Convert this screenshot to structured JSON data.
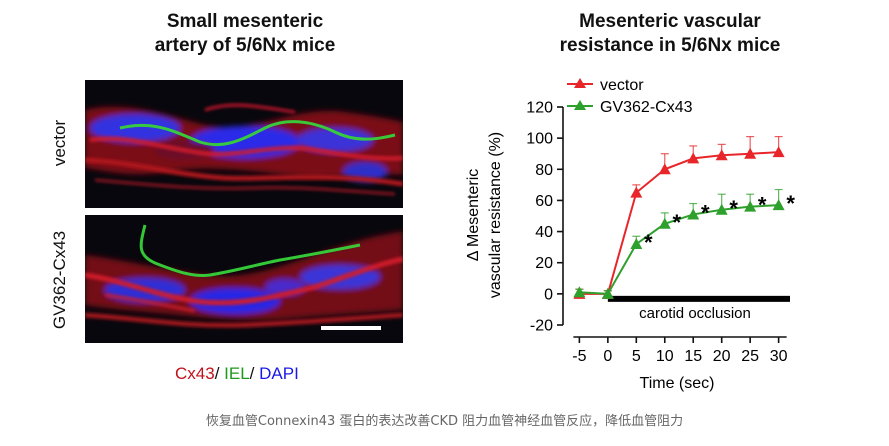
{
  "left_panel": {
    "title_line1": "Small mesenteric",
    "title_line2": "artery of 5/6Nx mice",
    "row_labels": [
      "vector",
      "GV362-Cx43"
    ],
    "stain_legend": {
      "cx43": "Cx43",
      "sep1": "/ ",
      "iel": "IEL",
      "sep2": "/ ",
      "dapi": "DAPI",
      "colors": {
        "cx43": "#c0121b",
        "iel": "#1c9a1c",
        "dapi": "#1a1ae6"
      }
    }
  },
  "right_panel": {
    "title_line1": "Mesenteric vascular",
    "title_line2": "resistance in 5/6Nx mice"
  },
  "chart_data": {
    "type": "line",
    "x": [
      -5,
      0,
      5,
      10,
      15,
      20,
      25,
      30
    ],
    "xlabel": "Time (sec)",
    "ylabel_line1": "Δ Mesenteric",
    "ylabel_line2": "vascular resistance (%)",
    "xlim": [
      -7,
      32
    ],
    "ylim": [
      -20,
      120
    ],
    "xticks": [
      -5,
      0,
      5,
      10,
      15,
      20,
      25,
      30
    ],
    "yticks": [
      -20,
      0,
      20,
      40,
      60,
      80,
      100,
      120
    ],
    "legend_position": "top-left",
    "grid": false,
    "series": [
      {
        "name": "vector",
        "color": "#e8262a",
        "marker": "triangle-up",
        "values": [
          0,
          0,
          65,
          80,
          87,
          89,
          90,
          91
        ],
        "errors": [
          3,
          2,
          5,
          10,
          8,
          7,
          11,
          10
        ]
      },
      {
        "name": "GV362-Cx43",
        "color": "#2ea02c",
        "marker": "triangle-up",
        "values": [
          1,
          0,
          32,
          45,
          51,
          54,
          56,
          57
        ],
        "errors": [
          2,
          2,
          5,
          7,
          7,
          10,
          8,
          10
        ],
        "significance": [
          "",
          "",
          "*",
          "*",
          "*",
          "*",
          "*",
          "*"
        ]
      }
    ],
    "annotation": {
      "label": "carotid occlusion",
      "x_start": 0,
      "x_end": 32
    }
  },
  "caption": "恢复血管Connexin43 蛋白的表达改善CKD 阻力血管神经血管反应，降低血管阻力"
}
